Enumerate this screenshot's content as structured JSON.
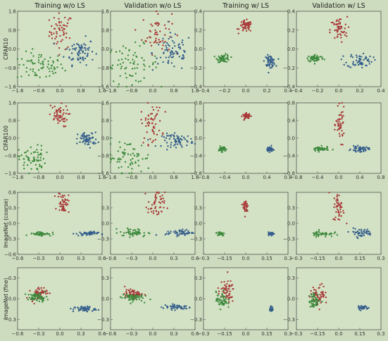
{
  "figure": {
    "col_titles": [
      "Training w/o LS",
      "Validation w/o LS",
      "Training w/ LS",
      "Validation w/ LS"
    ],
    "row_labels": [
      "CIFAR10",
      "CIFAR100",
      "ImageNet (coarse)",
      "ImageNet (fine)"
    ]
  },
  "colors": {
    "background": "#cddcbe",
    "plot_bg": "#d3e2c4",
    "red": "#a83a3a",
    "green": "#3f8a3f",
    "blue": "#355e8c",
    "axis": "#555555"
  },
  "chart_data": [
    {
      "type": "scatter",
      "row": 0,
      "col": 0,
      "xlim": [
        -1.6,
        1.6
      ],
      "ylim": [
        -1.6,
        1.6
      ],
      "xticks": [
        -1.6,
        -0.8,
        0.0,
        0.8,
        1.6
      ],
      "yticks": [
        -1.6,
        -0.8,
        0.0,
        0.8,
        1.6
      ],
      "series": [
        {
          "color": "red",
          "center": [
            0.05,
            0.75
          ],
          "spread": [
            0.22,
            0.38
          ],
          "n": 55
        },
        {
          "color": "green",
          "center": [
            -0.75,
            -0.75
          ],
          "spread": [
            0.45,
            0.3
          ],
          "n": 70
        },
        {
          "color": "blue",
          "center": [
            0.75,
            -0.1
          ],
          "spread": [
            0.28,
            0.28
          ],
          "n": 70
        }
      ]
    },
    {
      "type": "scatter",
      "row": 0,
      "col": 1,
      "xlim": [
        -1.6,
        1.6
      ],
      "ylim": [
        -1.6,
        1.6
      ],
      "xticks": [
        -1.6,
        -0.8,
        0.0,
        0.8,
        1.6
      ],
      "yticks": [
        -1.6,
        -0.8,
        0.0,
        0.8,
        1.6
      ],
      "series": [
        {
          "color": "red",
          "center": [
            0.15,
            0.7
          ],
          "spread": [
            0.28,
            0.45
          ],
          "n": 55
        },
        {
          "color": "green",
          "center": [
            -0.8,
            -0.65
          ],
          "spread": [
            0.5,
            0.4
          ],
          "n": 70
        },
        {
          "color": "blue",
          "center": [
            0.75,
            -0.15
          ],
          "spread": [
            0.38,
            0.4
          ],
          "n": 70
        }
      ]
    },
    {
      "type": "scatter",
      "row": 0,
      "col": 2,
      "xlim": [
        -0.4,
        0.4
      ],
      "ylim": [
        -0.4,
        0.4
      ],
      "xticks": [
        -0.4,
        -0.2,
        0.0,
        0.2,
        0.4
      ],
      "yticks": [
        -0.4,
        -0.2,
        0.0,
        0.2,
        0.4
      ],
      "series": [
        {
          "color": "red",
          "center": [
            0.0,
            0.24
          ],
          "spread": [
            0.03,
            0.03
          ],
          "n": 55
        },
        {
          "color": "green",
          "center": [
            -0.21,
            -0.1
          ],
          "spread": [
            0.03,
            0.02
          ],
          "n": 60
        },
        {
          "color": "blue",
          "center": [
            0.23,
            -0.13
          ],
          "spread": [
            0.025,
            0.03
          ],
          "n": 60
        }
      ]
    },
    {
      "type": "scatter",
      "row": 0,
      "col": 3,
      "xlim": [
        -0.4,
        0.4
      ],
      "ylim": [
        -0.4,
        0.4
      ],
      "xticks": [
        -0.4,
        -0.2,
        0.0,
        0.2,
        0.4
      ],
      "yticks": [
        -0.4,
        -0.2,
        0.0,
        0.2,
        0.4
      ],
      "series": [
        {
          "color": "red",
          "center": [
            0.0,
            0.2
          ],
          "spread": [
            0.04,
            0.07
          ],
          "n": 55
        },
        {
          "color": "green",
          "center": [
            -0.22,
            -0.1
          ],
          "spread": [
            0.04,
            0.02
          ],
          "n": 60
        },
        {
          "color": "blue",
          "center": [
            0.2,
            -0.12
          ],
          "spread": [
            0.06,
            0.04
          ],
          "n": 60
        }
      ]
    },
    {
      "type": "scatter",
      "row": 1,
      "col": 0,
      "xlim": [
        -1.6,
        1.6
      ],
      "ylim": [
        -1.6,
        1.6
      ],
      "xticks": [
        -1.6,
        -0.8,
        0.0,
        0.8,
        1.6
      ],
      "yticks": [
        -1.6,
        -0.8,
        0.0,
        0.8,
        1.6
      ],
      "series": [
        {
          "color": "red",
          "center": [
            -0.05,
            1.0
          ],
          "spread": [
            0.18,
            0.25
          ],
          "n": 55
        },
        {
          "color": "green",
          "center": [
            -1.05,
            -0.95
          ],
          "spread": [
            0.25,
            0.3
          ],
          "n": 65
        },
        {
          "color": "blue",
          "center": [
            1.05,
            -0.05
          ],
          "spread": [
            0.18,
            0.15
          ],
          "n": 65
        }
      ]
    },
    {
      "type": "scatter",
      "row": 1,
      "col": 1,
      "xlim": [
        -1.6,
        1.6
      ],
      "ylim": [
        -1.6,
        1.6
      ],
      "xticks": [
        -1.6,
        -0.8,
        0.0,
        0.8,
        1.6
      ],
      "yticks": [
        -1.6,
        -0.8,
        0.0,
        0.8,
        1.6
      ],
      "series": [
        {
          "color": "red",
          "center": [
            -0.05,
            0.65
          ],
          "spread": [
            0.2,
            0.45
          ],
          "n": 55
        },
        {
          "color": "green",
          "center": [
            -0.95,
            -0.9
          ],
          "spread": [
            0.45,
            0.4
          ],
          "n": 65
        },
        {
          "color": "blue",
          "center": [
            0.95,
            -0.1
          ],
          "spread": [
            0.3,
            0.15
          ],
          "n": 65
        }
      ]
    },
    {
      "type": "scatter",
      "row": 1,
      "col": 2,
      "xlim": [
        -0.8,
        0.8
      ],
      "ylim": [
        -0.8,
        0.8
      ],
      "xticks": [
        -0.8,
        -0.4,
        0.0,
        0.4,
        0.8
      ],
      "yticks": [
        -0.8,
        -0.4,
        0.0,
        0.4,
        0.8
      ],
      "series": [
        {
          "color": "red",
          "center": [
            0.02,
            0.5
          ],
          "spread": [
            0.04,
            0.03
          ],
          "n": 45
        },
        {
          "color": "green",
          "center": [
            -0.45,
            -0.25
          ],
          "spread": [
            0.03,
            0.03
          ],
          "n": 45
        },
        {
          "color": "blue",
          "center": [
            0.45,
            -0.25
          ],
          "spread": [
            0.03,
            0.03
          ],
          "n": 45
        }
      ]
    },
    {
      "type": "scatter",
      "row": 1,
      "col": 3,
      "xlim": [
        -0.8,
        0.8
      ],
      "ylim": [
        -0.8,
        0.8
      ],
      "xticks": [
        -0.8,
        -0.4,
        0.0,
        0.4,
        0.8
      ],
      "yticks": [
        -0.8,
        -0.4,
        0.0,
        0.4,
        0.8
      ],
      "series": [
        {
          "color": "red",
          "center": [
            0.03,
            0.3
          ],
          "spread": [
            0.04,
            0.18
          ],
          "n": 50
        },
        {
          "color": "green",
          "center": [
            -0.35,
            -0.25
          ],
          "spread": [
            0.08,
            0.03
          ],
          "n": 50
        },
        {
          "color": "blue",
          "center": [
            0.4,
            -0.25
          ],
          "spread": [
            0.08,
            0.03
          ],
          "n": 50
        }
      ]
    },
    {
      "type": "scatter",
      "row": 2,
      "col": 0,
      "xlim": [
        -0.6,
        0.6
      ],
      "ylim": [
        -0.6,
        0.6
      ],
      "xticks": [
        -0.6,
        -0.3,
        0.0,
        0.3,
        0.6
      ],
      "yticks": [
        -0.6,
        -0.3,
        0.0,
        0.3,
        0.6
      ],
      "series": [
        {
          "color": "red",
          "center": [
            0.05,
            0.4
          ],
          "spread": [
            0.04,
            0.1
          ],
          "n": 45
        },
        {
          "color": "green",
          "center": [
            -0.27,
            -0.2
          ],
          "spread": [
            0.08,
            0.02
          ],
          "n": 45
        },
        {
          "color": "blue",
          "center": [
            0.38,
            -0.2
          ],
          "spread": [
            0.08,
            0.02
          ],
          "n": 45
        }
      ]
    },
    {
      "type": "scatter",
      "row": 2,
      "col": 1,
      "xlim": [
        -0.6,
        0.6
      ],
      "ylim": [
        -0.6,
        0.6
      ],
      "xticks": [
        -0.6,
        -0.3,
        0.0,
        0.3,
        0.6
      ],
      "yticks": [
        -0.3,
        0.0,
        0.3
      ],
      "series": [
        {
          "color": "red",
          "center": [
            0.05,
            0.35
          ],
          "spread": [
            0.06,
            0.14
          ],
          "n": 50
        },
        {
          "color": "green",
          "center": [
            -0.27,
            -0.18
          ],
          "spread": [
            0.1,
            0.04
          ],
          "n": 50
        },
        {
          "color": "blue",
          "center": [
            0.38,
            -0.18
          ],
          "spread": [
            0.1,
            0.03
          ],
          "n": 50
        }
      ]
    },
    {
      "type": "scatter",
      "row": 2,
      "col": 2,
      "xlim": [
        -0.3,
        0.3
      ],
      "ylim": [
        -0.6,
        0.6
      ],
      "xticks": [
        -0.3,
        -0.15,
        0.0,
        0.15,
        0.3
      ],
      "yticks": [
        -0.3,
        0.0,
        0.3
      ],
      "series": [
        {
          "color": "red",
          "center": [
            0.0,
            0.32
          ],
          "spread": [
            0.01,
            0.08
          ],
          "n": 35
        },
        {
          "color": "green",
          "center": [
            -0.18,
            -0.2
          ],
          "spread": [
            0.015,
            0.02
          ],
          "n": 35
        },
        {
          "color": "blue",
          "center": [
            0.18,
            -0.2
          ],
          "spread": [
            0.01,
            0.015
          ],
          "n": 35
        }
      ]
    },
    {
      "type": "scatter",
      "row": 2,
      "col": 3,
      "xlim": [
        -0.3,
        0.3
      ],
      "ylim": [
        -0.6,
        0.6
      ],
      "xticks": [
        -0.3,
        -0.15,
        0.0,
        0.15,
        0.3
      ],
      "yticks": [
        -0.3,
        0.0,
        0.3
      ],
      "series": [
        {
          "color": "red",
          "center": [
            0.0,
            0.3
          ],
          "spread": [
            0.02,
            0.14
          ],
          "n": 45
        },
        {
          "color": "green",
          "center": [
            -0.12,
            -0.2
          ],
          "spread": [
            0.04,
            0.03
          ],
          "n": 45
        },
        {
          "color": "blue",
          "center": [
            0.16,
            -0.18
          ],
          "spread": [
            0.04,
            0.04
          ],
          "n": 45
        }
      ]
    },
    {
      "type": "scatter",
      "row": 3,
      "col": 0,
      "xlim": [
        -0.6,
        0.6
      ],
      "ylim": [
        -0.45,
        0.45
      ],
      "xticks": [
        -0.6,
        -0.3,
        0.0,
        0.3,
        0.6
      ],
      "yticks": [
        -0.3,
        0.0,
        0.3
      ],
      "series": [
        {
          "color": "red",
          "center": [
            -0.3,
            0.08
          ],
          "spread": [
            0.06,
            0.05
          ],
          "n": 60
        },
        {
          "color": "green",
          "center": [
            -0.32,
            0.02
          ],
          "spread": [
            0.07,
            0.03
          ],
          "n": 60
        },
        {
          "color": "blue",
          "center": [
            0.35,
            -0.15
          ],
          "spread": [
            0.08,
            0.02
          ],
          "n": 50
        }
      ]
    },
    {
      "type": "scatter",
      "row": 3,
      "col": 1,
      "xlim": [
        -0.6,
        0.6
      ],
      "ylim": [
        -0.45,
        0.45
      ],
      "xticks": [
        -0.6,
        -0.3,
        0.0,
        0.3,
        0.6
      ],
      "yticks": [
        -0.3,
        0.0,
        0.3
      ],
      "series": [
        {
          "color": "red",
          "center": [
            -0.28,
            0.07
          ],
          "spread": [
            0.06,
            0.03
          ],
          "n": 60
        },
        {
          "color": "green",
          "center": [
            -0.3,
            0.02
          ],
          "spread": [
            0.08,
            0.03
          ],
          "n": 60
        },
        {
          "color": "blue",
          "center": [
            0.35,
            -0.12
          ],
          "spread": [
            0.1,
            0.02
          ],
          "n": 50
        }
      ]
    },
    {
      "type": "scatter",
      "row": 3,
      "col": 2,
      "xlim": [
        -0.3,
        0.3
      ],
      "ylim": [
        -0.45,
        0.45
      ],
      "xticks": [
        -0.3,
        -0.15,
        0.0,
        0.15,
        0.3
      ],
      "yticks": [
        -0.3,
        0.0,
        0.3
      ],
      "series": [
        {
          "color": "red",
          "center": [
            -0.14,
            0.1
          ],
          "spread": [
            0.03,
            0.08
          ],
          "n": 60
        },
        {
          "color": "green",
          "center": [
            -0.17,
            -0.02
          ],
          "spread": [
            0.02,
            0.06
          ],
          "n": 50
        },
        {
          "color": "blue",
          "center": [
            0.18,
            -0.15
          ],
          "spread": [
            0.006,
            0.02
          ],
          "n": 30
        }
      ]
    },
    {
      "type": "scatter",
      "row": 3,
      "col": 3,
      "xlim": [
        -0.3,
        0.3
      ],
      "ylim": [
        -0.45,
        0.45
      ],
      "xticks": [
        -0.3,
        -0.15,
        0.0,
        0.15,
        0.3
      ],
      "yticks": [
        -0.3,
        0.0,
        0.3
      ],
      "series": [
        {
          "color": "red",
          "center": [
            -0.14,
            0.06
          ],
          "spread": [
            0.03,
            0.07
          ],
          "n": 60
        },
        {
          "color": "green",
          "center": [
            -0.17,
            -0.03
          ],
          "spread": [
            0.02,
            0.05
          ],
          "n": 50
        },
        {
          "color": "blue",
          "center": [
            0.17,
            -0.13
          ],
          "spread": [
            0.02,
            0.02
          ],
          "n": 30
        }
      ]
    }
  ]
}
